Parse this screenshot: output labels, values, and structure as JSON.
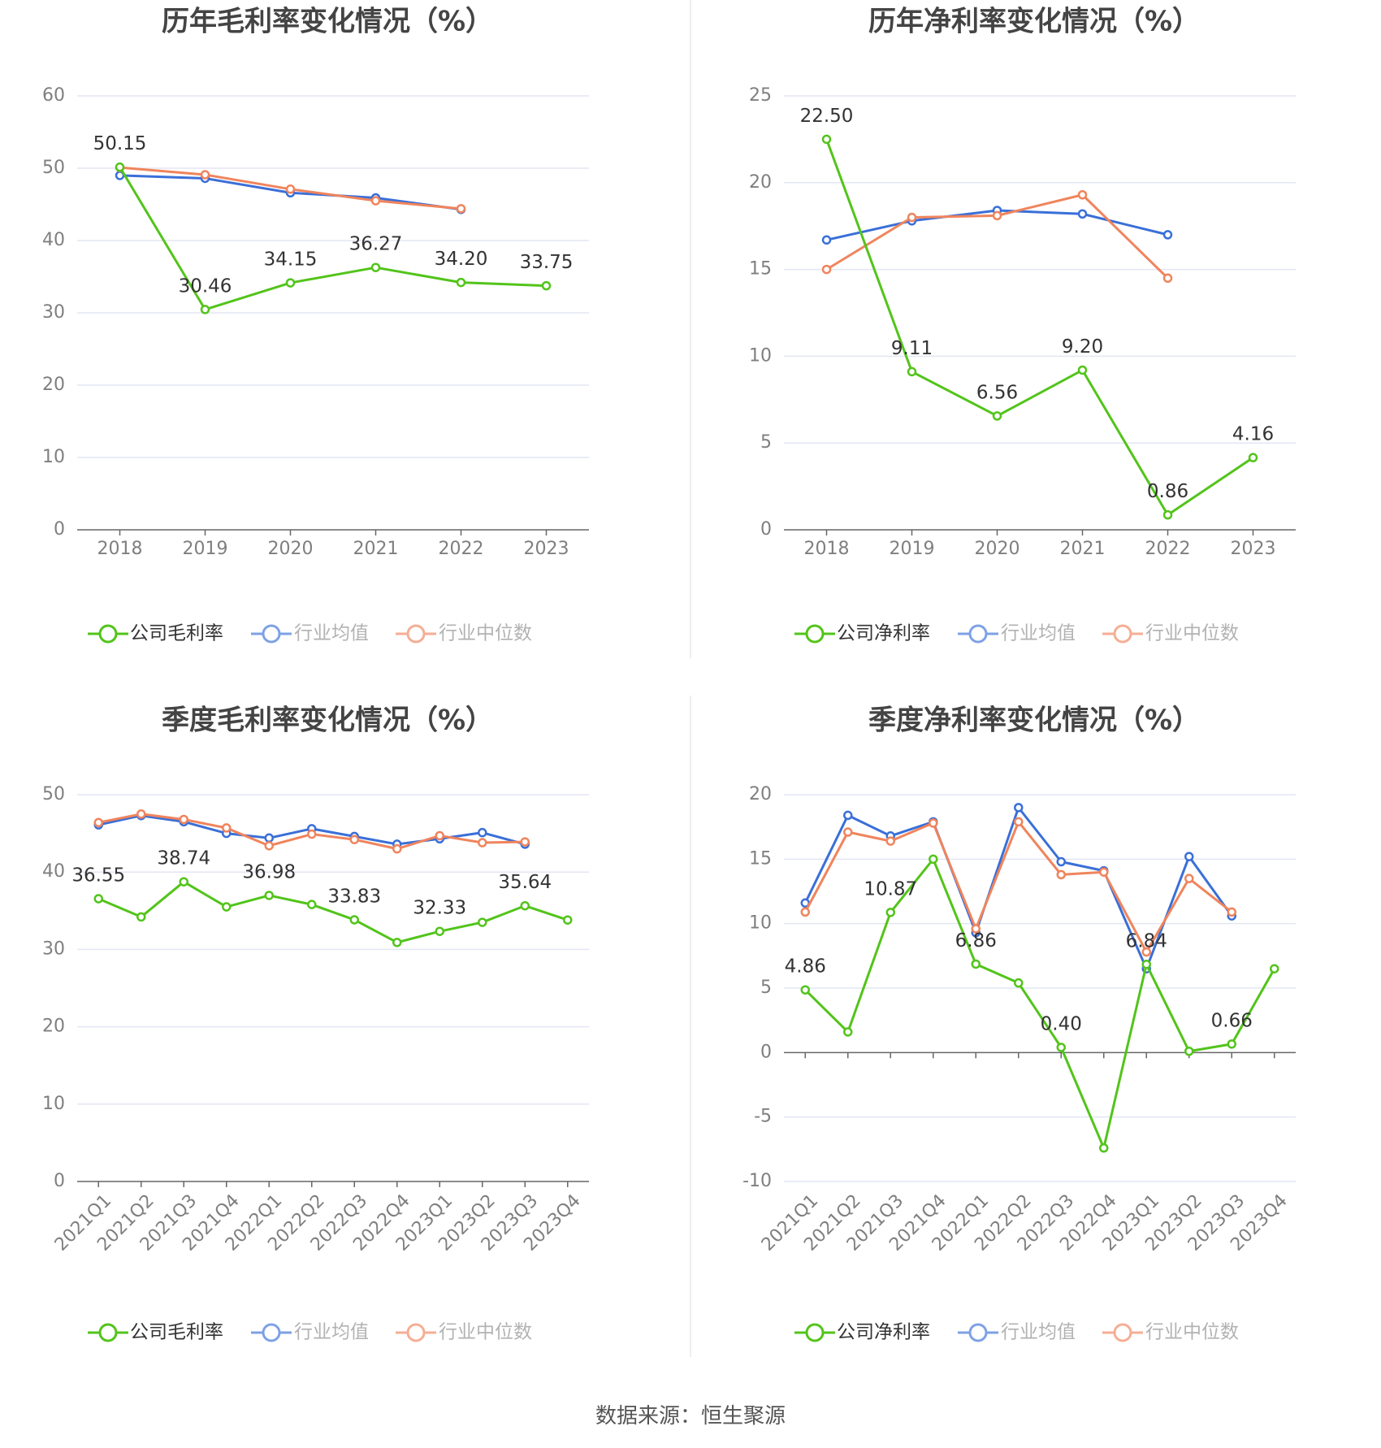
{
  "colors": {
    "company": "#52c41a",
    "avg": "#3a6fd8",
    "median": "#f0845c",
    "grid": "#e3e6f3",
    "axis": "#666666",
    "divider": "#e8e8e8"
  },
  "source_text": "数据来源：恒生聚源",
  "chart_data": [
    {
      "type": "line",
      "title": "历年毛利率变化情况（%）",
      "categories": [
        "2018",
        "2019",
        "2020",
        "2021",
        "2022",
        "2023"
      ],
      "ylim": [
        0,
        60
      ],
      "yticks": [
        0,
        10,
        20,
        30,
        40,
        50,
        60
      ],
      "grid": true,
      "legend_position": "bottom",
      "rotate_labels": false,
      "series": [
        {
          "name": "公司毛利率",
          "role": "company",
          "values": [
            50.15,
            30.46,
            34.15,
            36.27,
            34.2,
            33.75
          ],
          "labels": [
            "50.15",
            "30.46",
            "34.15",
            "36.27",
            "34.20",
            "33.75"
          ]
        },
        {
          "name": "行业均值",
          "role": "avg",
          "values": [
            49.0,
            48.6,
            46.6,
            45.9,
            44.3,
            null
          ]
        },
        {
          "name": "行业中位数",
          "role": "median",
          "values": [
            50.1,
            49.1,
            47.1,
            45.5,
            44.4,
            null
          ]
        }
      ]
    },
    {
      "type": "line",
      "title": "历年净利率变化情况（%）",
      "categories": [
        "2018",
        "2019",
        "2020",
        "2021",
        "2022",
        "2023"
      ],
      "ylim": [
        0,
        25
      ],
      "yticks": [
        0,
        5,
        10,
        15,
        20,
        25
      ],
      "grid": true,
      "legend_position": "bottom",
      "rotate_labels": false,
      "series": [
        {
          "name": "公司净利率",
          "role": "company",
          "values": [
            22.5,
            9.11,
            6.56,
            9.2,
            0.86,
            4.16
          ],
          "labels": [
            "22.50",
            "9.11",
            "6.56",
            "9.20",
            "0.86",
            "4.16"
          ]
        },
        {
          "name": "行业均值",
          "role": "avg",
          "values": [
            16.7,
            17.8,
            18.4,
            18.2,
            17.0,
            null
          ]
        },
        {
          "name": "行业中位数",
          "role": "median",
          "values": [
            15.0,
            18.0,
            18.1,
            19.3,
            14.5,
            null
          ]
        }
      ]
    },
    {
      "type": "line",
      "title": "季度毛利率变化情况（%）",
      "categories": [
        "2021Q1",
        "2021Q2",
        "2021Q3",
        "2021Q4",
        "2022Q1",
        "2022Q2",
        "2022Q3",
        "2022Q4",
        "2023Q1",
        "2023Q2",
        "2023Q3",
        "2023Q4"
      ],
      "ylim": [
        0,
        50
      ],
      "yticks": [
        0,
        10,
        20,
        30,
        40,
        50
      ],
      "grid": true,
      "legend_position": "bottom",
      "rotate_labels": true,
      "series": [
        {
          "name": "公司毛利率",
          "role": "company",
          "values": [
            36.55,
            34.2,
            38.74,
            35.5,
            36.98,
            35.8,
            33.83,
            30.9,
            32.33,
            33.5,
            35.64,
            33.8
          ],
          "labels": [
            "36.55",
            "",
            "38.74",
            "",
            "36.98",
            "",
            "33.83",
            "",
            "32.33",
            "",
            "35.64",
            ""
          ]
        },
        {
          "name": "行业均值",
          "role": "avg",
          "values": [
            46.1,
            47.3,
            46.5,
            45.0,
            44.4,
            45.6,
            44.6,
            43.6,
            44.3,
            45.1,
            43.6,
            null
          ]
        },
        {
          "name": "行业中位数",
          "role": "median",
          "values": [
            46.4,
            47.5,
            46.8,
            45.7,
            43.4,
            44.9,
            44.2,
            43.0,
            44.7,
            43.8,
            43.9,
            null
          ]
        }
      ]
    },
    {
      "type": "line",
      "title": "季度净利率变化情况（%）",
      "categories": [
        "2021Q1",
        "2021Q2",
        "2021Q3",
        "2021Q4",
        "2022Q1",
        "2022Q2",
        "2022Q3",
        "2022Q4",
        "2023Q1",
        "2023Q2",
        "2023Q3",
        "2023Q4"
      ],
      "ylim": [
        -10,
        20
      ],
      "yticks": [
        -10,
        -5,
        0,
        5,
        10,
        15,
        20
      ],
      "grid": true,
      "legend_position": "bottom",
      "rotate_labels": true,
      "series": [
        {
          "name": "公司净利率",
          "role": "company",
          "values": [
            4.86,
            1.6,
            10.87,
            15.0,
            6.86,
            5.4,
            0.4,
            -7.4,
            6.84,
            0.1,
            0.66,
            6.5
          ],
          "labels": [
            "4.86",
            "",
            "10.87",
            "",
            "6.86",
            "",
            "0.40",
            "",
            "6.84",
            "",
            "0.66",
            ""
          ]
        },
        {
          "name": "行业均值",
          "role": "avg",
          "values": [
            11.6,
            18.4,
            16.8,
            17.9,
            9.3,
            19.0,
            14.8,
            14.1,
            6.5,
            15.2,
            10.6,
            null
          ]
        },
        {
          "name": "行业中位数",
          "role": "median",
          "values": [
            10.9,
            17.1,
            16.4,
            17.8,
            9.6,
            17.9,
            13.8,
            14.0,
            7.8,
            13.5,
            10.9,
            null
          ]
        }
      ]
    }
  ]
}
